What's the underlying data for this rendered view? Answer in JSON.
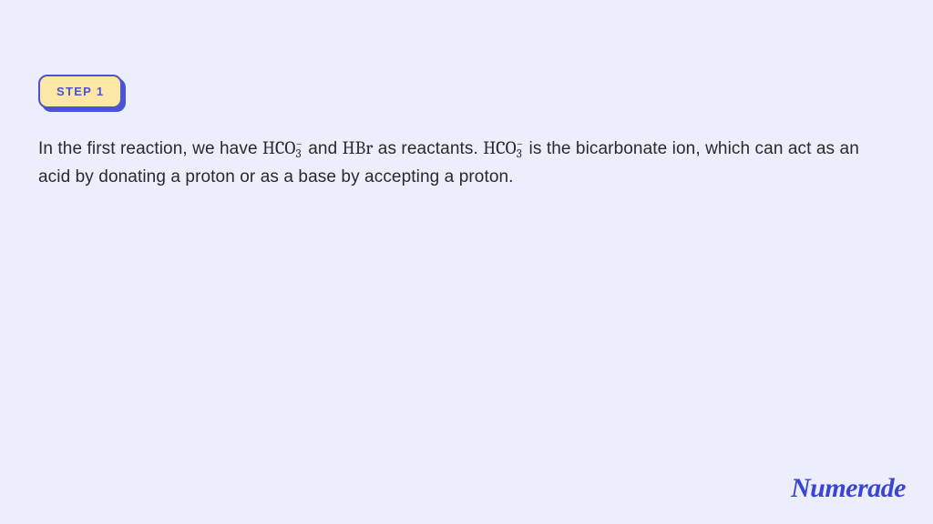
{
  "step": {
    "label": "STEP 1",
    "badge_bg": "#fce7a5",
    "badge_border": "#4a52d8",
    "badge_text_color": "#4a52d8"
  },
  "text": {
    "part1": "In the first reaction, we have ",
    "formula1_main": "HCO",
    "formula1_sub": "3",
    "formula1_sup": "−",
    "part2": " and ",
    "formula2": "HBr",
    "part3": " as reactants. ",
    "formula3_main": "HCO",
    "formula3_sub": "3",
    "formula3_sup": "−",
    "part4": " is the bicarbonate ion, which can act as an acid by donating a proton or as a base by accepting a proton."
  },
  "logo": "Numerade",
  "colors": {
    "page_bg": "#eceefb",
    "text": "#2a2a2a",
    "logo": "#3a45d6"
  },
  "typography": {
    "body_fontsize": 19,
    "badge_fontsize": 13,
    "formula_family": "serif"
  }
}
